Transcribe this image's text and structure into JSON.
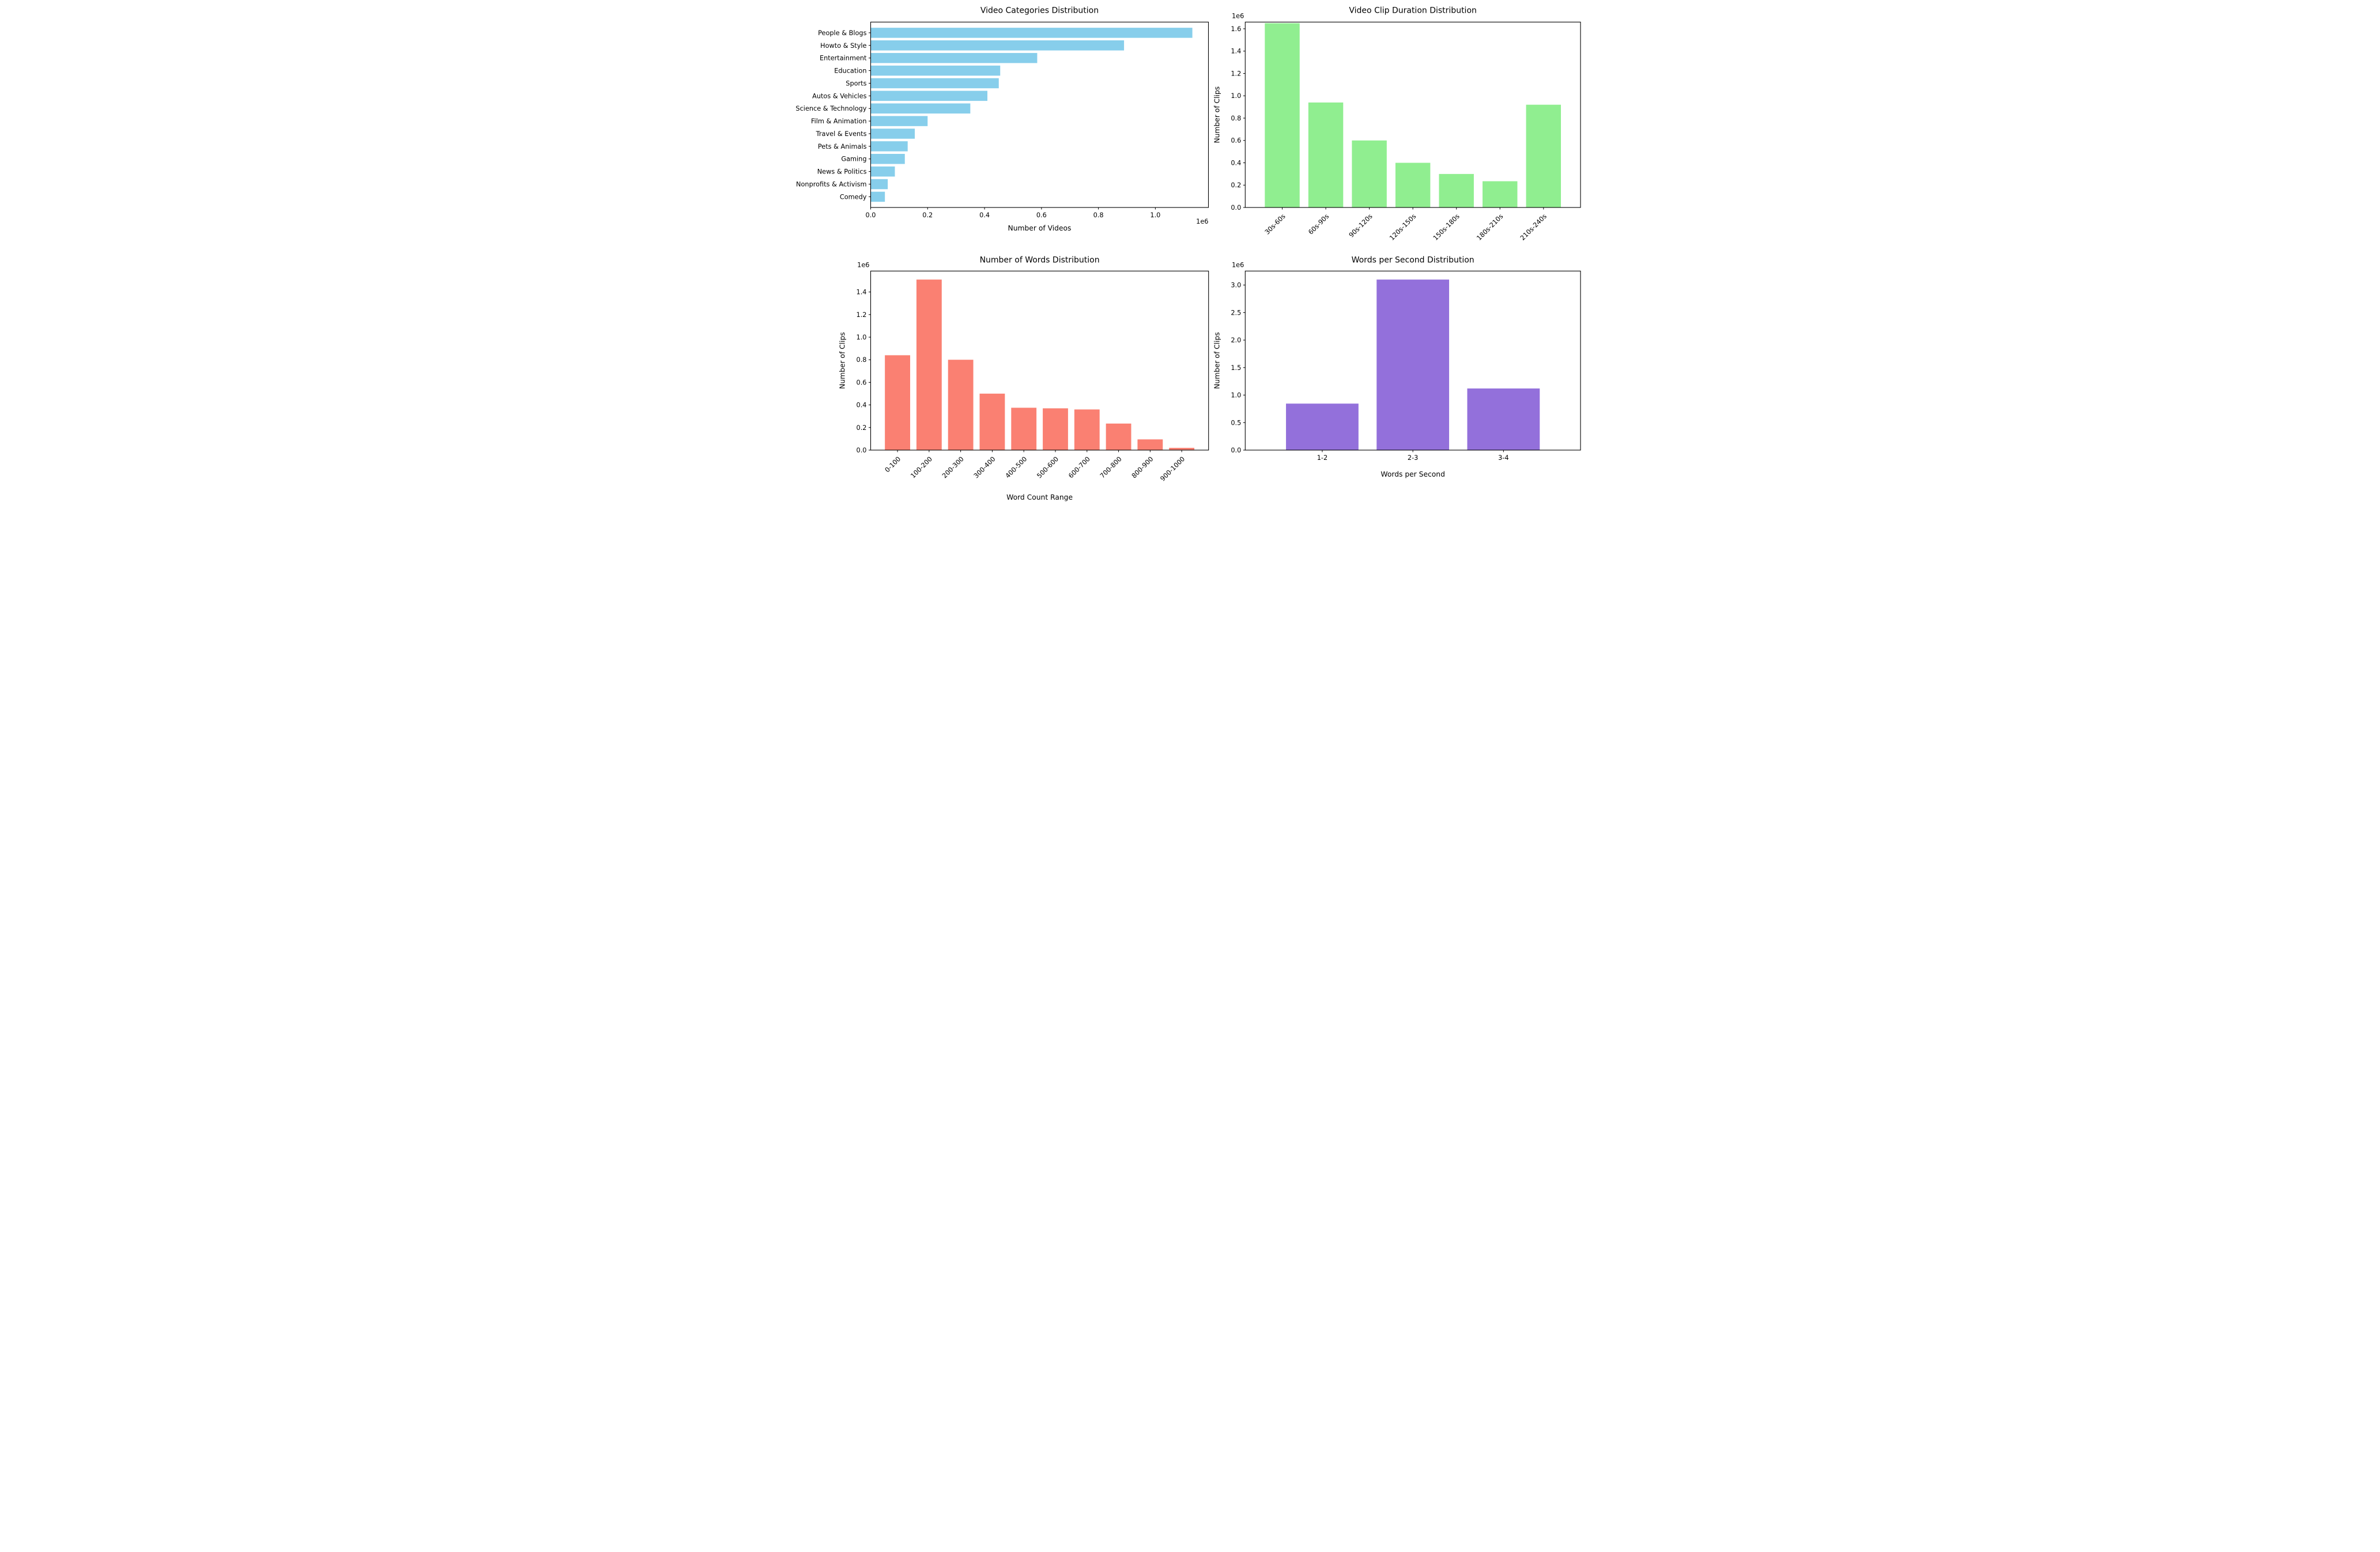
{
  "figure": {
    "background": "#ffffff",
    "text_color": "#000000",
    "offset_label": "1e6"
  },
  "chart_data": [
    {
      "id": "video-categories",
      "type": "bar",
      "orientation": "horizontal",
      "title": "Video Categories Distribution",
      "xlabel": "Number of Videos",
      "ylabel": "",
      "color": "#87CEEB",
      "categories": [
        "People & Blogs",
        "Howto & Style",
        "Entertainment",
        "Education",
        "Sports",
        "Autos & Vehicles",
        "Science & Technology",
        "Film & Animation",
        "Travel & Events",
        "Pets & Animals",
        "Gaming",
        "News & Politics",
        "Nonprofits & Activism",
        "Comedy"
      ],
      "values": [
        1130000,
        890000,
        585000,
        455000,
        450000,
        410000,
        350000,
        200000,
        155000,
        130000,
        120000,
        85000,
        60000,
        50000
      ],
      "xlim": [
        0,
        1186500
      ],
      "x_tick_values": [
        0,
        200000,
        400000,
        600000,
        800000,
        1000000
      ],
      "x_tick_labels": [
        "0.0",
        "0.2",
        "0.4",
        "0.6",
        "0.8",
        "1.0"
      ],
      "offset_text": "1e6",
      "tick_rotation": 0,
      "grid": false
    },
    {
      "id": "clip-duration",
      "type": "bar",
      "orientation": "vertical",
      "title": "Video Clip Duration Distribution",
      "xlabel": "",
      "ylabel": "Number of Clips",
      "color": "#90EE90",
      "categories": [
        "30s-60s",
        "60s-90s",
        "90s-120s",
        "120s-150s",
        "150s-180s",
        "180s-210s",
        "210s-240s"
      ],
      "values": [
        1650000,
        940000,
        600000,
        400000,
        300000,
        235000,
        920000
      ],
      "ylim": [
        0,
        1660000
      ],
      "y_tick_values": [
        0,
        200000,
        400000,
        600000,
        800000,
        1000000,
        1200000,
        1400000,
        1600000
      ],
      "y_tick_labels": [
        "0.0",
        "0.2",
        "0.4",
        "0.6",
        "0.8",
        "1.0",
        "1.2",
        "1.4",
        "1.6"
      ],
      "offset_text": "1e6",
      "tick_rotation": 45,
      "grid": false
    },
    {
      "id": "word-count",
      "type": "bar",
      "orientation": "vertical",
      "title": "Number of Words Distribution",
      "xlabel": "Word Count Range",
      "ylabel": "Number of Clips",
      "color": "#FA8072",
      "categories": [
        "0-100",
        "100-200",
        "200-300",
        "300-400",
        "400-500",
        "500-600",
        "600-700",
        "700-800",
        "800-900",
        "900-1000"
      ],
      "values": [
        840000,
        1510000,
        800000,
        500000,
        375000,
        370000,
        360000,
        235000,
        95000,
        20000
      ],
      "ylim": [
        0,
        1585500
      ],
      "y_tick_values": [
        0,
        200000,
        400000,
        600000,
        800000,
        1000000,
        1200000,
        1400000
      ],
      "y_tick_labels": [
        "0.0",
        "0.2",
        "0.4",
        "0.6",
        "0.8",
        "1.0",
        "1.2",
        "1.4"
      ],
      "offset_text": "1e6",
      "tick_rotation": 45,
      "grid": false
    },
    {
      "id": "words-per-second",
      "type": "bar",
      "orientation": "vertical",
      "title": "Words per Second Distribution",
      "xlabel": "Words per Second",
      "ylabel": "Number of Clips",
      "color": "#9370DB",
      "categories": [
        "1-2",
        "2-3",
        "3-4"
      ],
      "values": [
        845000,
        3100000,
        1120000
      ],
      "ylim": [
        0,
        3255000
      ],
      "y_tick_values": [
        0,
        500000,
        1000000,
        1500000,
        2000000,
        2500000,
        3000000
      ],
      "y_tick_labels": [
        "0.0",
        "0.5",
        "1.0",
        "1.5",
        "2.0",
        "2.5",
        "3.0"
      ],
      "offset_text": "1e6",
      "tick_rotation": 0,
      "grid": false
    }
  ]
}
